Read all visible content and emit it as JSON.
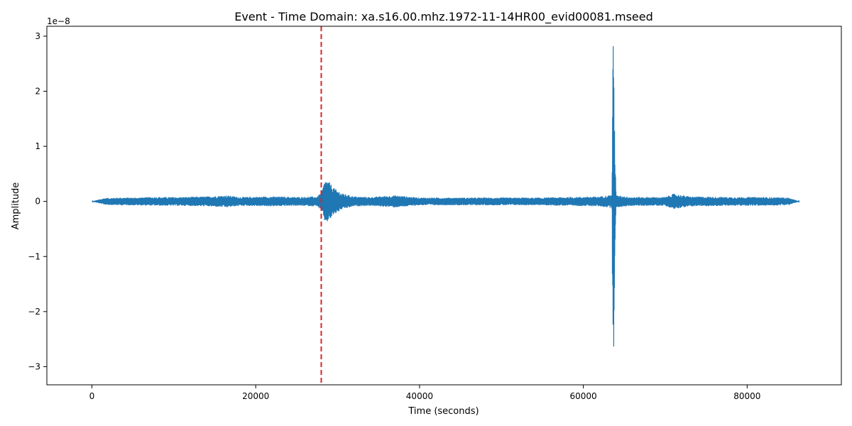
{
  "chart_data": {
    "type": "line",
    "title": "Event - Time Domain: xa.s16.00.mhz.1972-11-14HR00_evid00081.mseed",
    "xlabel": "Time (seconds)",
    "ylabel": "Amplitude",
    "y_offset_text": "1e−8",
    "xlim": [
      -5500,
      91500
    ],
    "ylim": [
      -3.33e-08,
      3.18e-08
    ],
    "x_ticks": [
      0,
      20000,
      40000,
      60000,
      80000
    ],
    "x_tick_labels": [
      "0",
      "20000",
      "40000",
      "60000",
      "80000"
    ],
    "y_ticks": [
      -3e-08,
      -2e-08,
      -1e-08,
      0,
      1e-08,
      2e-08,
      3e-08
    ],
    "y_tick_labels": [
      "−3",
      "−2",
      "−1",
      "0",
      "1",
      "2",
      "3"
    ],
    "grid": false,
    "series": [
      {
        "color": "#1f77b4",
        "envelope_x": [
          0,
          1500,
          3000,
          5000,
          8000,
          11000,
          14000,
          16500,
          18000,
          22000,
          25000,
          27500,
          28000,
          28500,
          29000,
          29500,
          30500,
          32000,
          34000,
          37000,
          40000,
          45000,
          50000,
          55000,
          58000,
          62000,
          63500,
          63600,
          63700,
          63800,
          64000,
          66000,
          70000,
          71000,
          73000,
          78000,
          82000,
          85000,
          86400
        ],
        "envelope_amp": [
          0.0,
          6e-10,
          7e-10,
          7e-10,
          8e-10,
          8e-10,
          9e-10,
          1.1e-09,
          8e-10,
          9e-10,
          8e-10,
          9e-10,
          1.6e-09,
          4e-09,
          3.5e-09,
          2.5e-09,
          1.5e-09,
          9e-10,
          8e-10,
          1.1e-09,
          7e-10,
          7e-10,
          7e-10,
          7e-10,
          8e-10,
          9e-10,
          1.2e-09,
          2.8e-08,
          2.9e-08,
          1.5e-08,
          1.1e-09,
          8e-10,
          8e-10,
          1.4e-09,
          9e-10,
          8e-10,
          8e-10,
          7e-10,
          0.0
        ]
      }
    ],
    "event_marker": {
      "x": 28000,
      "style": "dashed",
      "color": "#d62728"
    }
  }
}
